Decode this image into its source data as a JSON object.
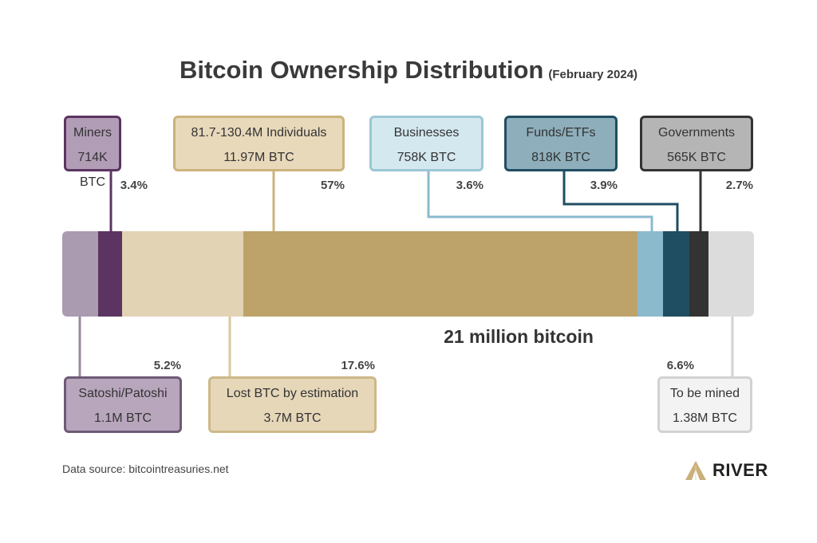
{
  "chart_data": {
    "type": "bar",
    "title": "Bitcoin Ownership Distribution",
    "subtitle": "(February 2024)",
    "total_label": "21 million bitcoin",
    "categories": [
      "Satoshi/Patoshi",
      "Miners",
      "Lost BTC by estimation",
      "81.7-130.4M Individuals",
      "Businesses",
      "Funds/ETFs",
      "Governments",
      "To be mined"
    ],
    "series": [
      {
        "name": "Satoshi/Patoshi",
        "amount": "1.1M BTC",
        "percent_label": "5.2%",
        "value": 5.2,
        "color": "#ab9bb1",
        "box_border": "#6e5a76",
        "box_fill": "#b8a6bd"
      },
      {
        "name": "Miners",
        "amount": "714K BTC",
        "percent_label": "3.4%",
        "value": 3.4,
        "color": "#5b3461",
        "box_border": "#5b3461",
        "box_fill": "#b29db6"
      },
      {
        "name": "Lost BTC by estimation",
        "amount": "3.7M BTC",
        "percent_label": "17.6%",
        "value": 17.6,
        "color": "#e2d3b5",
        "box_border": "#cdb888",
        "box_fill": "#e6d7b9"
      },
      {
        "name": "81.7-130.4M Individuals",
        "amount": "11.97M BTC",
        "percent_label": "57%",
        "value": 57,
        "color": "#bda26a",
        "box_border": "#cdb37c",
        "box_fill": "#e8d9bb"
      },
      {
        "name": "Businesses",
        "amount": "758K BTC",
        "percent_label": "3.6%",
        "value": 3.6,
        "color": "#8bbacd",
        "box_border": "#9cc7d5",
        "box_fill": "#d4e8ef"
      },
      {
        "name": "Funds/ETFs",
        "amount": "818K BTC",
        "percent_label": "3.9%",
        "value": 3.9,
        "color": "#1f4d61",
        "box_border": "#1f4d61",
        "box_fill": "#8eaebb"
      },
      {
        "name": "Governments",
        "amount": "565K BTC",
        "percent_label": "2.7%",
        "value": 2.7,
        "color": "#333333",
        "box_border": "#333333",
        "box_fill": "#b5b5b5"
      },
      {
        "name": "To be mined",
        "amount": "1.38M BTC",
        "percent_label": "6.6%",
        "value": 6.6,
        "color": "#dcdcdc",
        "box_border": "#d2d2d2",
        "box_fill": "#f3f3f3"
      }
    ]
  },
  "footer": {
    "source": "Data source: bitcointreasuries.net",
    "brand": "RIVER"
  }
}
